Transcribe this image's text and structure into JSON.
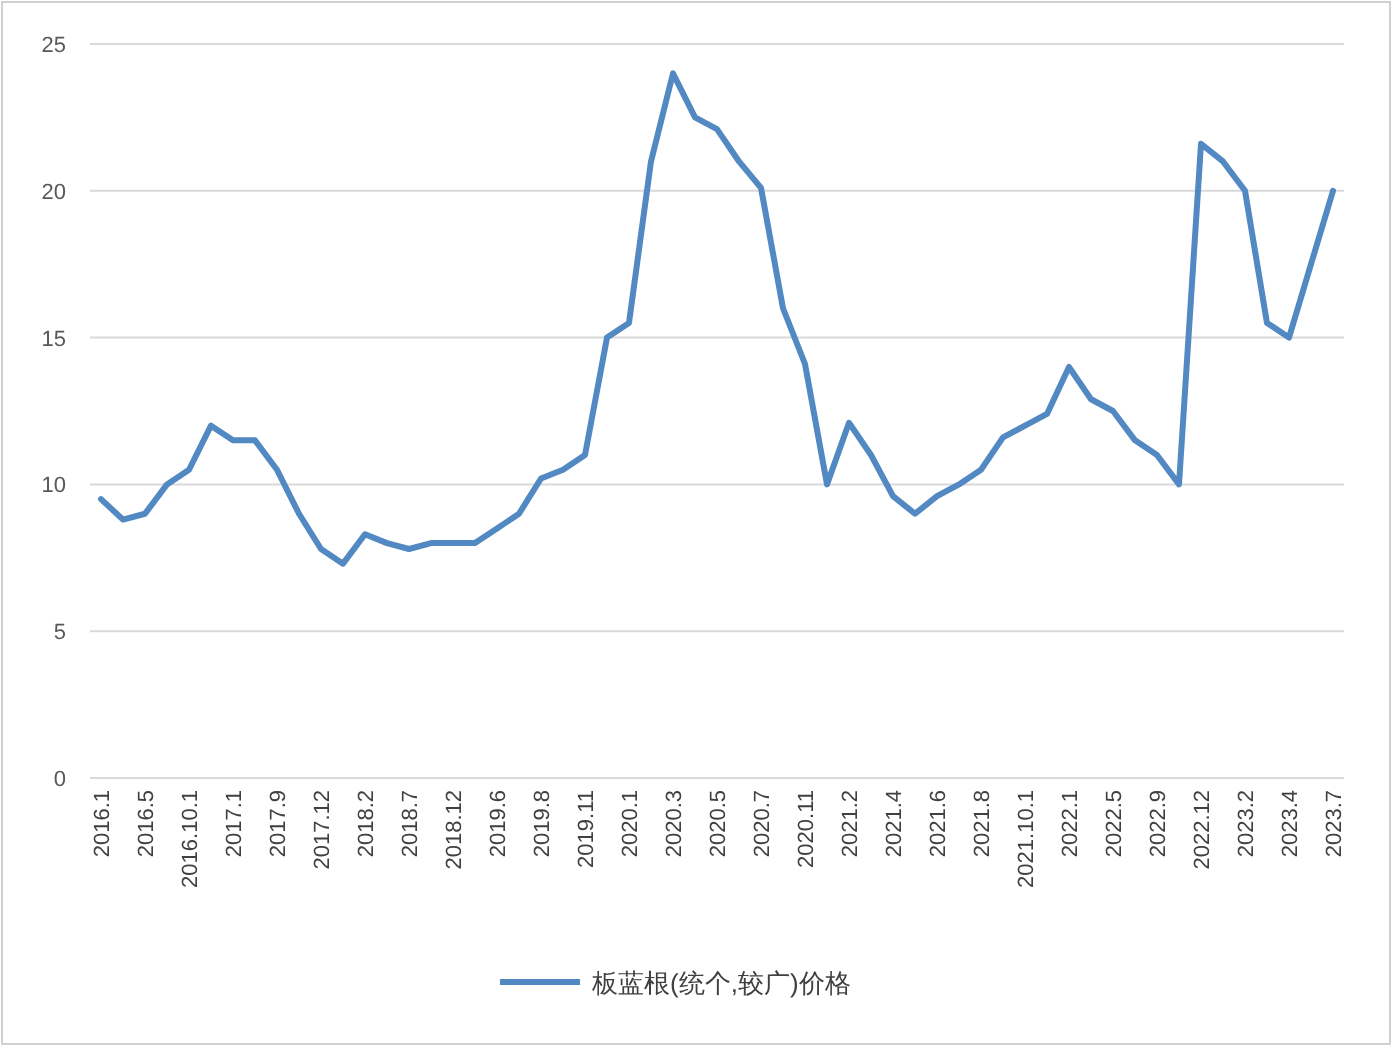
{
  "chart_data": {
    "type": "line",
    "categories": [
      "2016.1",
      null,
      "2016.5",
      null,
      "2016.10.1",
      null,
      "2017.1",
      null,
      "2017.9",
      null,
      "2017.12",
      null,
      "2018.2",
      null,
      "2018.7",
      null,
      "2018.12",
      null,
      "2019.6",
      null,
      "2019.8",
      null,
      "2019.11",
      null,
      "2020.1",
      null,
      "2020.3",
      null,
      "2020.5",
      null,
      "2020.7",
      null,
      "2020.11",
      null,
      "2021.2",
      null,
      "2021.4",
      null,
      "2021.6",
      null,
      "2021.8",
      null,
      "2021.10.1",
      null,
      "2022.1",
      null,
      "2022.5",
      null,
      "2022.9",
      null,
      "2022.12",
      null,
      "2023.2",
      null,
      "2023.4",
      null,
      "2023.7"
    ],
    "series": [
      {
        "name": "板蓝根(统个,较广)价格",
        "color": "#5289c3",
        "values": [
          9.5,
          8.8,
          9.0,
          10.0,
          10.5,
          12.0,
          11.5,
          11.5,
          10.5,
          9.0,
          7.8,
          7.3,
          8.3,
          8.0,
          7.8,
          8.0,
          8.0,
          8.0,
          8.5,
          9.0,
          10.2,
          10.5,
          11.0,
          15.0,
          15.5,
          21.0,
          24.0,
          22.5,
          22.1,
          21.0,
          20.1,
          16.0,
          14.1,
          10.0,
          12.1,
          11.0,
          9.6,
          9.0,
          9.6,
          10.0,
          10.5,
          11.6,
          12.0,
          12.4,
          14.0,
          12.9,
          12.5,
          11.5,
          11.0,
          10.0,
          21.6,
          21.0,
          20.0,
          15.5,
          15.0,
          17.5,
          20.0
        ]
      }
    ],
    "ylim": [
      0,
      25
    ],
    "yticks": [
      0,
      5,
      10,
      15,
      20,
      25
    ],
    "grid": "y",
    "legend": "bottom"
  }
}
